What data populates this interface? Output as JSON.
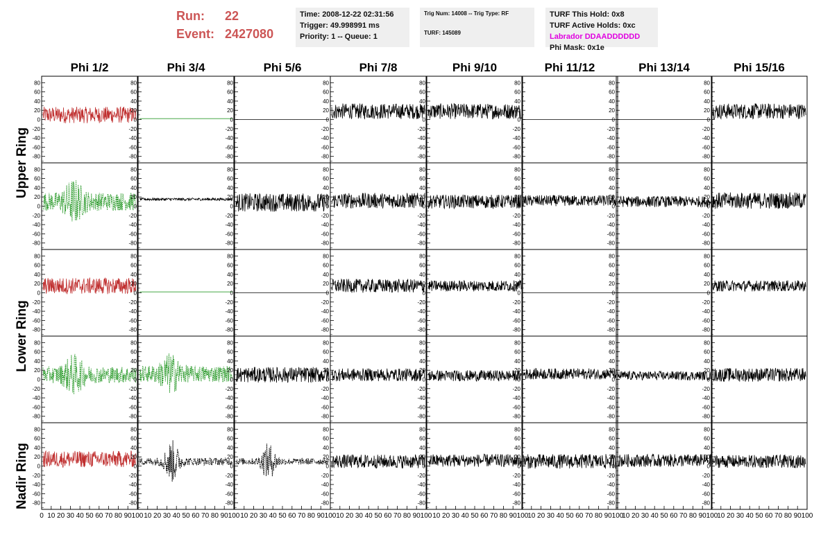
{
  "header": {
    "run_label": "Run:",
    "run_value": "22",
    "event_label": "Event:",
    "event_value": "2427080"
  },
  "info_time": {
    "time": "Time: 2008-12-22 02:31:56",
    "trigger": "Trigger: 49.998991 ms",
    "priority": "Priority: 1 -- Queue: 1"
  },
  "info_trig": {
    "trig": "Trig Num: 14008 -- Trig Type: RF",
    "turf": "TURF: 145089"
  },
  "info_turf": {
    "this_hold": "TURF This Hold: 0x8",
    "active_holds": "TURF Active Holds: 0xc",
    "labrador": "Labrador DDAADDDDDD",
    "phi_mask": "Phi Mask: 0x1e"
  },
  "columns": [
    "Phi 1/2",
    "Phi 3/4",
    "Phi 5/6",
    "Phi 7/8",
    "Phi 9/10",
    "Phi 11/12",
    "Phi 13/14",
    "Phi 15/16"
  ],
  "rings": [
    "Upper Ring",
    "Lower Ring",
    "Nadir Ring"
  ],
  "colors": {
    "red": "#c03030",
    "green": "#2a9a2a",
    "black": "#000000",
    "magenta": "#e000e0",
    "header_red": "#cc5555"
  },
  "chart_data": {
    "type": "line",
    "ylim": [
      -85,
      85
    ],
    "xlim": [
      0,
      100
    ],
    "yticks": [
      80,
      60,
      40,
      20,
      0,
      -20,
      -40,
      -60,
      -80
    ],
    "xtick_labels_first": [
      "0",
      "10",
      "20",
      "30",
      "40",
      "50",
      "60",
      "70",
      "80",
      "90",
      "100"
    ],
    "xtick_labels_rest": [
      "10",
      "20",
      "30",
      "40",
      "50",
      "60",
      "70",
      "80",
      "90",
      "100"
    ],
    "panels": [
      [
        {
          "style": "red",
          "amp": 18,
          "offset": 10,
          "burst": 0
        },
        {
          "style": "flat-green",
          "amp": 0,
          "offset": 2,
          "burst": 0
        },
        {
          "style": "flat-black",
          "amp": 0,
          "offset": 0,
          "burst": 0
        },
        {
          "style": "black",
          "amp": 17,
          "offset": 18,
          "burst": 0
        },
        {
          "style": "black",
          "amp": 17,
          "offset": 18,
          "burst": 0
        },
        {
          "style": "flat-black",
          "amp": 0,
          "offset": 0,
          "burst": 0
        },
        {
          "style": "flat-black",
          "amp": 0,
          "offset": 0,
          "burst": 0
        },
        {
          "style": "black",
          "amp": 17,
          "offset": 18,
          "burst": 0
        }
      ],
      [
        {
          "style": "green-dash",
          "amp": 20,
          "offset": 10,
          "burst": 1
        },
        {
          "style": "black",
          "amp": 3,
          "offset": 15,
          "burst": 0
        },
        {
          "style": "black",
          "amp": 20,
          "offset": 8,
          "burst": 0
        },
        {
          "style": "black",
          "amp": 17,
          "offset": 12,
          "burst": 0
        },
        {
          "style": "black",
          "amp": 15,
          "offset": 10,
          "burst": 0
        },
        {
          "style": "black",
          "amp": 12,
          "offset": 12,
          "burst": 0
        },
        {
          "style": "black",
          "amp": 12,
          "offset": 10,
          "burst": 0
        },
        {
          "style": "black",
          "amp": 18,
          "offset": 12,
          "burst": 0
        }
      ],
      [
        {
          "style": "red",
          "amp": 18,
          "offset": 15,
          "burst": 0
        },
        {
          "style": "flat-green",
          "amp": 0,
          "offset": 2,
          "burst": 0
        },
        {
          "style": "flat-black",
          "amp": 0,
          "offset": 0,
          "burst": 0
        },
        {
          "style": "black",
          "amp": 15,
          "offset": 15,
          "burst": 0
        },
        {
          "style": "black",
          "amp": 12,
          "offset": 15,
          "burst": 0
        },
        {
          "style": "flat-black",
          "amp": 0,
          "offset": 0,
          "burst": 0
        },
        {
          "style": "flat-black",
          "amp": 0,
          "offset": 0,
          "burst": 0
        },
        {
          "style": "black",
          "amp": 12,
          "offset": 15,
          "burst": 0
        }
      ],
      [
        {
          "style": "green-dash",
          "amp": 18,
          "offset": 10,
          "burst": 1
        },
        {
          "style": "green-dash",
          "amp": 18,
          "offset": 12,
          "burst": 1
        },
        {
          "style": "black",
          "amp": 17,
          "offset": 10,
          "burst": 0
        },
        {
          "style": "black",
          "amp": 14,
          "offset": 10,
          "burst": 0
        },
        {
          "style": "black",
          "amp": 12,
          "offset": 8,
          "burst": 0
        },
        {
          "style": "black",
          "amp": 12,
          "offset": 12,
          "burst": 0
        },
        {
          "style": "black",
          "amp": 10,
          "offset": 8,
          "burst": 0
        },
        {
          "style": "black",
          "amp": 15,
          "offset": 10,
          "burst": 0
        }
      ],
      [
        {
          "style": "red",
          "amp": 18,
          "offset": 15,
          "burst": 0
        },
        {
          "style": "black-dash",
          "amp": 14,
          "offset": 10,
          "burst": 2
        },
        {
          "style": "black-dash",
          "amp": 12,
          "offset": 10,
          "burst": 2
        },
        {
          "style": "black",
          "amp": 15,
          "offset": 10,
          "burst": 0
        },
        {
          "style": "black",
          "amp": 14,
          "offset": 12,
          "burst": 0
        },
        {
          "style": "black",
          "amp": 16,
          "offset": 10,
          "burst": 0
        },
        {
          "style": "black",
          "amp": 14,
          "offset": 12,
          "burst": 0
        },
        {
          "style": "black",
          "amp": 14,
          "offset": 10,
          "burst": 0
        }
      ]
    ]
  }
}
